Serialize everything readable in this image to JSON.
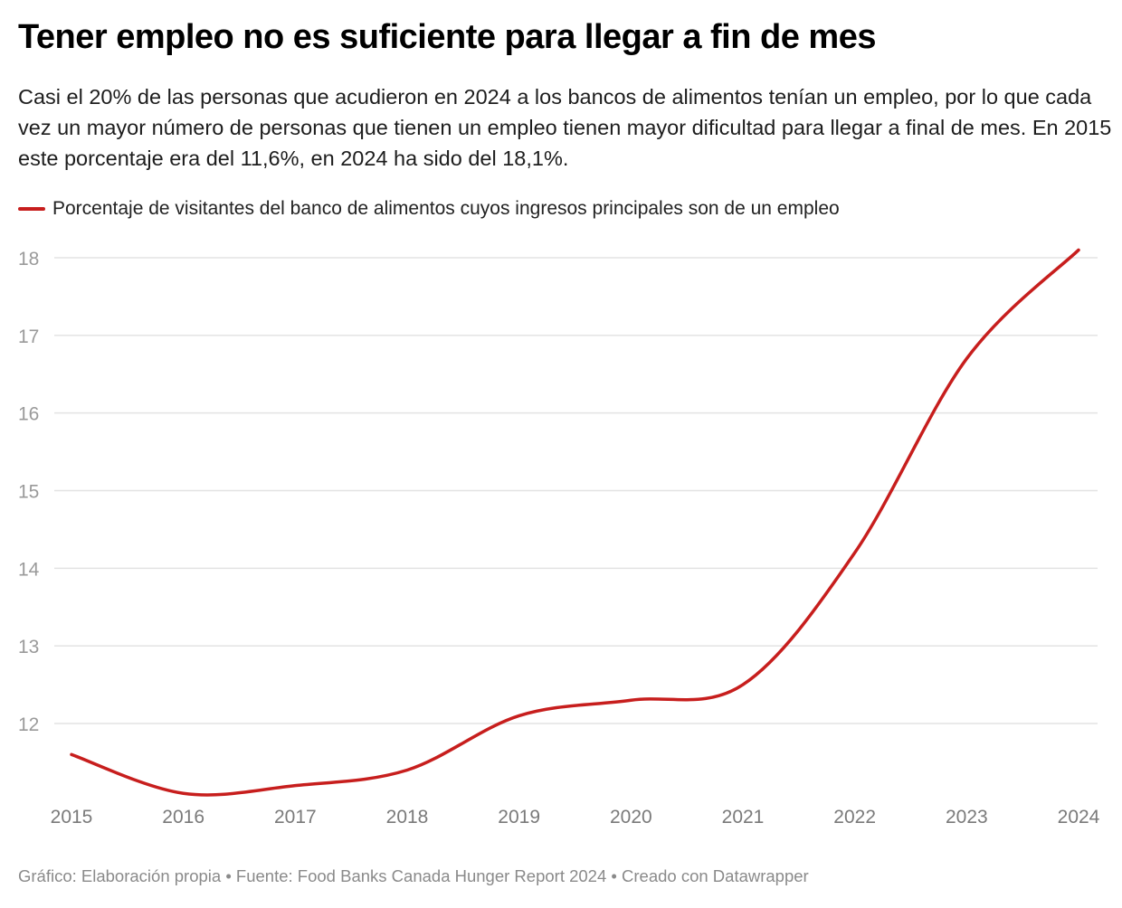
{
  "title": "Tener empleo no es suficiente para llegar a fin de mes",
  "subtitle": "Casi el 20% de las personas que acudieron en 2024 a los bancos de alimentos tenían un empleo, por lo que cada vez un mayor número de personas que tienen un empleo tienen mayor dificultad para llegar a final de mes. En 2015 este porcentaje era del 11,6%, en 2024 ha sido del 18,1%.",
  "footer": "Gráfico: Elaboración propia • Fuente: Food Banks Canada Hunger Report 2024 • Creado con Datawrapper",
  "chart_data": {
    "type": "line",
    "title": "Tener empleo no es suficiente para llegar a fin de mes",
    "xlabel": "",
    "ylabel": "",
    "x": [
      2015,
      2016,
      2017,
      2018,
      2019,
      2020,
      2021,
      2022,
      2023,
      2024
    ],
    "series": [
      {
        "name": "Porcentaje de visitantes del banco de alimentos cuyos ingresos principales son de un empleo",
        "color": "#c71e1d",
        "values": [
          11.6,
          11.1,
          11.2,
          11.4,
          12.1,
          12.3,
          12.5,
          14.2,
          16.7,
          18.1
        ]
      }
    ],
    "yticks": [
      12,
      13,
      14,
      15,
      16,
      17,
      18
    ],
    "xticks": [
      "2015",
      "2016",
      "2017",
      "2018",
      "2019",
      "2020",
      "2021",
      "2022",
      "2023",
      "2024"
    ],
    "ylim": [
      11,
      18.1
    ],
    "grid": true,
    "legend_position": "top-left"
  }
}
